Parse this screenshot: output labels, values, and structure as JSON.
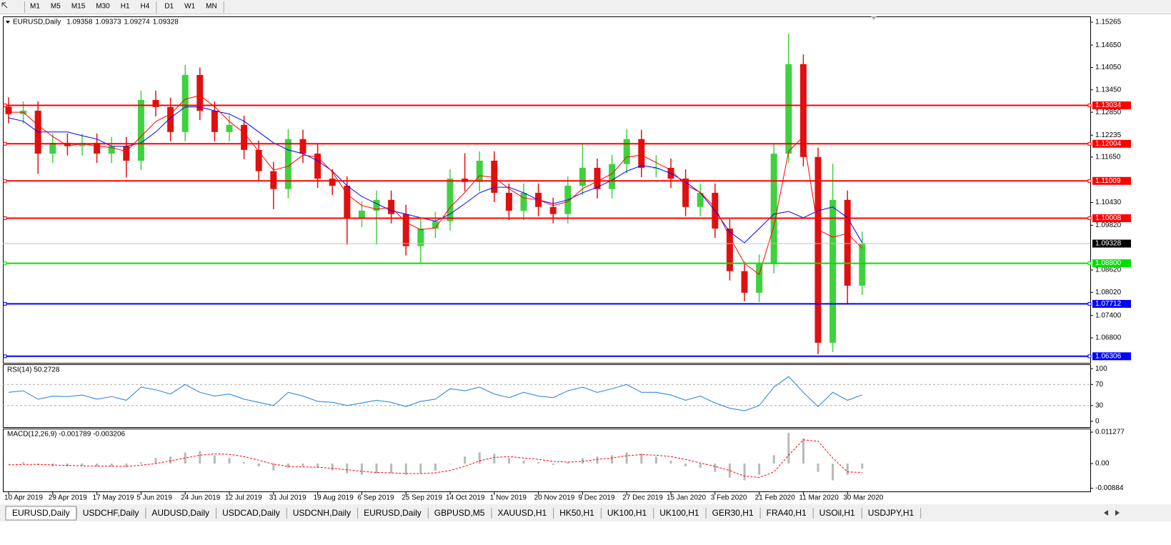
{
  "toolbar": {
    "timeframes": [
      "M1",
      "M5",
      "M15",
      "M30",
      "H1",
      "H4",
      "D1",
      "W1",
      "MN"
    ]
  },
  "chart_data": [
    {
      "type": "candlestick",
      "quote": {
        "symbol": "EURUSD,Daily",
        "open": 1.09358,
        "high": 1.09373,
        "low": 1.09274,
        "close": 1.09328
      },
      "categories": [
        "10 Apr 2019",
        null,
        null,
        "29 Apr 2019",
        null,
        null,
        "17 May 2019",
        null,
        null,
        "5 Jun 2019",
        null,
        null,
        "24 Jun 2019",
        null,
        null,
        "12 Jul 2019",
        null,
        null,
        "31 Jul 2019",
        null,
        null,
        "19 Aug 2019",
        null,
        null,
        "6 Sep 2019",
        null,
        null,
        "25 Sep 2019",
        null,
        null,
        "14 Oct 2019",
        null,
        null,
        "1 Nov 2019",
        null,
        null,
        "20 Nov 2019",
        null,
        null,
        "9 Dec 2019",
        null,
        null,
        "27 Dec 2019",
        null,
        null,
        "15 Jan 2020",
        null,
        null,
        "3 Feb 2020",
        null,
        null,
        "21 Feb 2020",
        null,
        null,
        "11 Mar 2020",
        null,
        null,
        "30 Mar 2020",
        null
      ],
      "open": [
        1.13,
        1.128,
        1.1289,
        1.1174,
        1.1203,
        1.1194,
        1.1203,
        1.1174,
        1.1194,
        1.1155,
        1.1318,
        1.1299,
        1.1232,
        1.1385,
        1.1289,
        1.1232,
        1.1251,
        1.1184,
        1.1127,
        1.1079,
        1.1213,
        1.1174,
        1.1107,
        1.1088,
        1.1002,
        1.1021,
        1.105,
        1.1012,
        1.0926,
        1.0973,
        1.0993,
        1.1107,
        1.1098,
        1.1155,
        1.1069,
        1.1021,
        1.1069,
        1.1031,
        1.1012,
        1.1088,
        1.1136,
        1.1079,
        1.1146,
        1.1213,
        1.1136,
        1.1136,
        1.1107,
        1.1031,
        1.1069,
        1.0973,
        1.0859,
        1.0801,
        1.0878,
        1.1174,
        1.1414,
        1.1165,
        1.0667,
        1.105,
        1.082
      ],
      "high": [
        1.1325,
        1.1314,
        1.1314,
        1.1228,
        1.1228,
        1.1228,
        1.1228,
        1.1219,
        1.1219,
        1.1343,
        1.1343,
        1.1324,
        1.1412,
        1.1405,
        1.1314,
        1.1276,
        1.1276,
        1.1209,
        1.1152,
        1.124,
        1.1238,
        1.1199,
        1.1132,
        1.1113,
        1.1046,
        1.1075,
        1.1075,
        1.1037,
        1.0998,
        1.1018,
        1.1132,
        1.1175,
        1.118,
        1.118,
        1.1094,
        1.1094,
        1.1094,
        1.1056,
        1.1113,
        1.12,
        1.1161,
        1.1171,
        1.124,
        1.1238,
        1.117,
        1.1161,
        1.1132,
        1.1094,
        1.1094,
        1.0998,
        1.0884,
        1.0903,
        1.12,
        1.1496,
        1.144,
        1.119,
        1.1147,
        1.1075,
        1.0965
      ],
      "low": [
        1.1255,
        1.1255,
        1.112,
        1.1149,
        1.1169,
        1.1169,
        1.1149,
        1.1149,
        1.111,
        1.113,
        1.1274,
        1.1207,
        1.1207,
        1.1264,
        1.1207,
        1.1207,
        1.1159,
        1.1102,
        1.1025,
        1.1054,
        1.1149,
        1.1082,
        1.1063,
        1.093,
        1.0977,
        1.093,
        1.0987,
        1.0901,
        1.088,
        1.0948,
        1.0968,
        1.1073,
        1.1073,
        1.1044,
        1.0996,
        1.0996,
        1.1006,
        1.0987,
        1.0987,
        1.1063,
        1.1054,
        1.1054,
        1.1121,
        1.1111,
        1.1111,
        1.1082,
        1.1006,
        1.1006,
        1.0948,
        1.0834,
        1.0778,
        1.0776,
        1.0853,
        1.1149,
        1.114,
        1.0636,
        1.0642,
        1.0769,
        1.0795
      ],
      "close": [
        1.128,
        1.1289,
        1.1174,
        1.1203,
        1.1194,
        1.1203,
        1.1174,
        1.1194,
        1.1155,
        1.1318,
        1.1299,
        1.1232,
        1.1385,
        1.1289,
        1.1232,
        1.1251,
        1.1184,
        1.1127,
        1.1079,
        1.1213,
        1.1174,
        1.1107,
        1.1088,
        1.1002,
        1.1021,
        1.105,
        1.1012,
        1.0926,
        1.0973,
        1.0993,
        1.1107,
        1.1098,
        1.1155,
        1.1069,
        1.1021,
        1.1069,
        1.1031,
        1.1012,
        1.1088,
        1.1136,
        1.1079,
        1.1146,
        1.1213,
        1.1136,
        1.1136,
        1.1107,
        1.1031,
        1.1069,
        1.0973,
        1.0859,
        1.0801,
        1.0878,
        1.1174,
        1.1414,
        1.1165,
        1.0667,
        1.105,
        1.082,
        1.09328
      ],
      "up_color": "#3fd13f",
      "down_color": "#e01010",
      "lines": [
        {
          "color": "#0000ff",
          "values": [
            1.127,
            1.1261,
            1.1232,
            1.1232,
            1.1232,
            1.1222,
            1.1213,
            1.1194,
            1.1194,
            1.1203,
            1.1232,
            1.127,
            1.1299,
            1.1299,
            1.1289,
            1.128,
            1.1261,
            1.1232,
            1.1203,
            1.1184,
            1.1174,
            1.1155,
            1.1127,
            1.1088,
            1.1059,
            1.104,
            1.1021,
            1.1012,
            1.1002,
            1.0993,
            1.1012,
            1.104,
            1.1069,
            1.1084,
            1.1084,
            1.1069,
            1.105,
            1.104,
            1.105,
            1.1069,
            1.1084,
            1.1103,
            1.1127,
            1.1142,
            1.1136,
            1.1121,
            1.1098,
            1.1069,
            1.1021,
            1.0964,
            1.0935,
            1.0973,
            1.1012,
            1.1019,
            1.1002,
            1.1021,
            1.1031,
            1.1002,
            1.0935
          ]
        },
        {
          "color": "#ff0000",
          "values": [
            1.1285,
            1.1285,
            1.125,
            1.122,
            1.1195,
            1.12,
            1.1195,
            1.119,
            1.118,
            1.122,
            1.126,
            1.128,
            1.132,
            1.133,
            1.13,
            1.126,
            1.123,
            1.118,
            1.113,
            1.114,
            1.117,
            1.1165,
            1.1125,
            1.1065,
            1.1035,
            1.1025,
            1.103,
            1.099,
            1.097,
            1.0975,
            1.103,
            1.107,
            1.1115,
            1.111,
            1.108,
            1.1055,
            1.105,
            1.1035,
            1.1045,
            1.108,
            1.11,
            1.112,
            1.1165,
            1.117,
            1.115,
            1.113,
            1.109,
            1.107,
            1.103,
            1.095,
            1.088,
            1.085,
            1.098,
            1.118,
            1.122,
            1.097,
            1.095,
            1.096,
            1.092
          ]
        }
      ],
      "levels": [
        {
          "value": 1.13034,
          "color": "#ff0000"
        },
        {
          "value": 1.12004,
          "color": "#ff0000"
        },
        {
          "value": 1.11009,
          "color": "#ff0000"
        },
        {
          "value": 1.10008,
          "color": "#ff0000"
        },
        {
          "value": 1.088,
          "label": "1.08800",
          "color": "#00e000"
        },
        {
          "value": 1.07712,
          "color": "#0000ff"
        },
        {
          "value": 1.06306,
          "color": "#0000ff"
        }
      ],
      "ylim": [
        1.0613,
        1.154
      ],
      "yticks": [
        1.15265,
        {
          "value": 1.1465,
          "label": "1.14650"
        },
        {
          "value": 1.1405,
          "label": "1.14050"
        },
        {
          "value": 1.1345,
          "label": "1.13450"
        },
        {
          "value": 1.1285,
          "label": "1.12850"
        },
        1.12235,
        {
          "value": 1.1165,
          "label": "1.11650"
        },
        {
          "value": 1.1043,
          "label": "1.10430"
        },
        {
          "value": 1.0982,
          "label": "1.09820"
        },
        {
          "value": 1.0862,
          "label": "1.08620"
        },
        {
          "value": 1.0802,
          "label": "1.08020"
        },
        {
          "value": 1.074,
          "label": "1.07400"
        },
        {
          "value": 1.068,
          "label": "1.06800"
        }
      ]
    },
    {
      "type": "line",
      "title": "RSI(14) 50.2728",
      "color": "#1e7fe0",
      "values": [
        55,
        58,
        42,
        48,
        47,
        50,
        42,
        47,
        40,
        65,
        60,
        52,
        70,
        55,
        48,
        52,
        42,
        36,
        30,
        55,
        48,
        38,
        36,
        30,
        35,
        40,
        36,
        28,
        38,
        42,
        62,
        58,
        65,
        52,
        45,
        55,
        48,
        45,
        58,
        65,
        55,
        62,
        70,
        55,
        55,
        50,
        40,
        48,
        35,
        25,
        20,
        30,
        65,
        85,
        55,
        28,
        55,
        40,
        50.27
      ],
      "ylim": [
        -11,
        107
      ],
      "yticks": [
        100,
        70,
        30,
        0
      ]
    },
    {
      "type": "macd",
      "title": "MACD(12,26,9) -0.001789 -0.003206",
      "hist_color": "#b8b8b8",
      "signal_color": "#ff0000",
      "histogram": [
        0.0,
        0.0005,
        -0.0005,
        -0.001,
        -0.001,
        -0.0008,
        -0.001,
        -0.001,
        -0.0012,
        0.0005,
        0.002,
        0.0025,
        0.004,
        0.0045,
        0.003,
        0.002,
        0.0005,
        -0.001,
        -0.0025,
        -0.0015,
        -0.001,
        -0.0015,
        -0.0025,
        -0.0035,
        -0.004,
        -0.0035,
        -0.0035,
        -0.004,
        -0.0035,
        -0.0025,
        0.0,
        0.0025,
        0.004,
        0.0035,
        0.002,
        0.001,
        0.0005,
        -0.0005,
        0.0005,
        0.002,
        0.0025,
        0.003,
        0.004,
        0.0035,
        0.0025,
        0.001,
        -0.001,
        -0.0015,
        -0.003,
        -0.005,
        -0.006,
        -0.004,
        0.003,
        0.011,
        0.009,
        -0.003,
        -0.006,
        -0.004,
        -0.001789
      ],
      "signal": [
        -0.0005,
        -0.0003,
        -0.0003,
        -0.0005,
        -0.0007,
        -0.0008,
        -0.0009,
        -0.0009,
        -0.001,
        -0.0006,
        0.0,
        0.001,
        0.002,
        0.003,
        0.0035,
        0.0033,
        0.0025,
        0.0012,
        -0.0002,
        -0.001,
        -0.0012,
        -0.0013,
        -0.0017,
        -0.0022,
        -0.0028,
        -0.0032,
        -0.0033,
        -0.0036,
        -0.0036,
        -0.0033,
        -0.0025,
        -0.001,
        0.001,
        0.0022,
        0.0025,
        0.002,
        0.0015,
        0.0008,
        0.0005,
        0.0008,
        0.0015,
        0.002,
        0.0028,
        0.0032,
        0.003,
        0.0025,
        0.0015,
        0.0002,
        -0.001,
        -0.0025,
        -0.0045,
        -0.005,
        -0.003,
        0.003,
        0.0085,
        0.008,
        0.002,
        -0.003,
        -0.003206
      ],
      "ylim": [
        -0.01,
        0.0123
      ],
      "yticks": [
        0.011277,
        {
          "value": 0,
          "label": "0.00"
        },
        -0.00884
      ]
    }
  ],
  "tabs": {
    "items": [
      "EURUSD,Daily",
      "USDCHF,Daily",
      "AUDUSD,Daily",
      "USDCAD,Daily",
      "USDCNH,Daily",
      "EURUSD,Daily",
      "GBPUSD,M5",
      "XAUUSD,H1",
      "HK50,H1",
      "UK100,H1",
      "UK100,H1",
      "GER30,H1",
      "FRA40,H1",
      "USOil,H1",
      "USDJPY,H1"
    ],
    "active": 0
  }
}
